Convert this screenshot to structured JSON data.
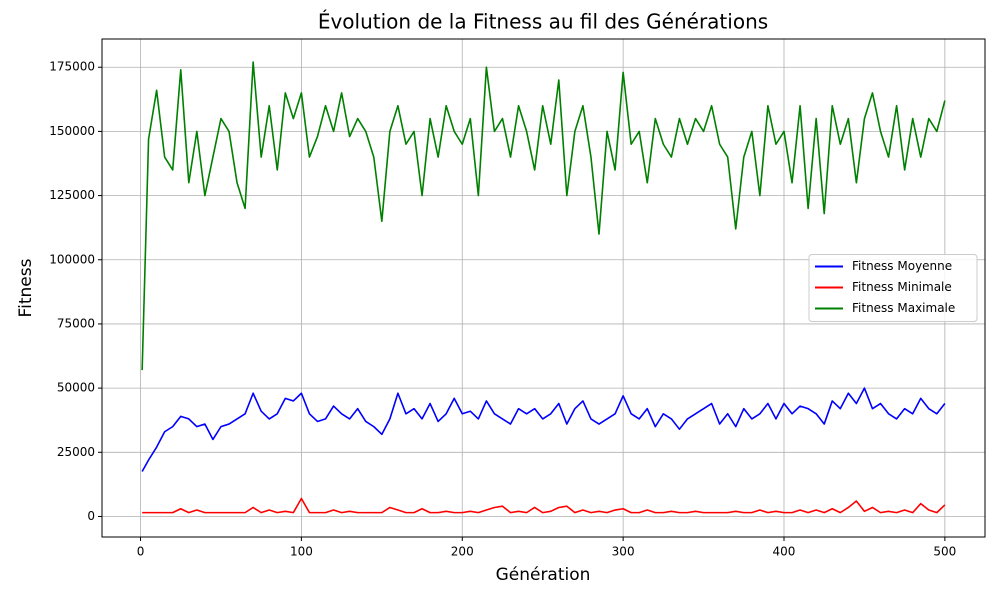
{
  "chart_data": {
    "type": "line",
    "title": "Évolution de la Fitness au fil des Générations",
    "x_label": "Génération",
    "y_label": "Fitness",
    "x": [
      1,
      5,
      10,
      15,
      20,
      25,
      30,
      35,
      40,
      45,
      50,
      55,
      60,
      65,
      70,
      75,
      80,
      85,
      90,
      95,
      100,
      105,
      110,
      115,
      120,
      125,
      130,
      135,
      140,
      145,
      150,
      155,
      160,
      165,
      170,
      175,
      180,
      185,
      190,
      195,
      200,
      205,
      210,
      215,
      220,
      225,
      230,
      235,
      240,
      245,
      250,
      255,
      260,
      265,
      270,
      275,
      280,
      285,
      290,
      295,
      300,
      305,
      310,
      315,
      320,
      325,
      330,
      335,
      340,
      345,
      350,
      355,
      360,
      365,
      370,
      375,
      380,
      385,
      390,
      395,
      400,
      405,
      410,
      415,
      420,
      425,
      430,
      435,
      440,
      445,
      450,
      455,
      460,
      465,
      470,
      475,
      480,
      485,
      490,
      495,
      500
    ],
    "series": [
      {
        "name": "Fitness Moyenne",
        "color": "#0000ff",
        "values": [
          17500,
          22000,
          27000,
          33000,
          35000,
          39000,
          38000,
          35000,
          36000,
          30000,
          35000,
          36000,
          38000,
          40000,
          48000,
          41000,
          38000,
          40000,
          46000,
          45000,
          48000,
          40000,
          37000,
          38000,
          43000,
          40000,
          38000,
          42000,
          37000,
          35000,
          32000,
          38000,
          48000,
          40000,
          42000,
          38000,
          44000,
          37000,
          40000,
          46000,
          40000,
          41000,
          38000,
          45000,
          40000,
          38000,
          36000,
          42000,
          40000,
          42000,
          38000,
          40000,
          44000,
          36000,
          42000,
          45000,
          38000,
          36000,
          38000,
          40000,
          47000,
          40000,
          38000,
          42000,
          35000,
          40000,
          38000,
          34000,
          38000,
          40000,
          42000,
          44000,
          36000,
          40000,
          35000,
          42000,
          38000,
          40000,
          44000,
          38000,
          44000,
          40000,
          43000,
          42000,
          40000,
          36000,
          45000,
          42000,
          48000,
          44000,
          50000,
          42000,
          44000,
          40000,
          38000,
          42000,
          40000,
          46000,
          42000,
          40000,
          44000
        ]
      },
      {
        "name": "Fitness Minimale",
        "color": "#ff0000",
        "values": [
          1500,
          1500,
          1500,
          1500,
          1500,
          3000,
          1500,
          2500,
          1500,
          1500,
          1500,
          1500,
          1500,
          1500,
          3500,
          1500,
          2500,
          1500,
          2000,
          1500,
          7000,
          1500,
          1500,
          1500,
          2500,
          1500,
          2000,
          1500,
          1500,
          1500,
          1500,
          3500,
          2500,
          1500,
          1500,
          3000,
          1500,
          1500,
          2000,
          1500,
          1500,
          2000,
          1500,
          2500,
          3500,
          4000,
          1500,
          2000,
          1500,
          3500,
          1500,
          2000,
          3500,
          4000,
          1500,
          2500,
          1500,
          2000,
          1500,
          2500,
          3000,
          1500,
          1500,
          2500,
          1500,
          1500,
          2000,
          1500,
          1500,
          2000,
          1500,
          1500,
          1500,
          1500,
          2000,
          1500,
          1500,
          2500,
          1500,
          2000,
          1500,
          1500,
          2500,
          1500,
          2500,
          1500,
          3000,
          1500,
          3500,
          6000,
          2000,
          3500,
          1500,
          2000,
          1500,
          2500,
          1500,
          5000,
          2500,
          1500,
          4500
        ]
      },
      {
        "name": "Fitness Maximale",
        "color": "#008000",
        "values": [
          57000,
          147000,
          166000,
          140000,
          135000,
          174000,
          130000,
          150000,
          125000,
          140000,
          155000,
          150000,
          130000,
          120000,
          177000,
          140000,
          160000,
          135000,
          165000,
          155000,
          165000,
          140000,
          148000,
          160000,
          150000,
          165000,
          148000,
          155000,
          150000,
          140000,
          115000,
          150000,
          160000,
          145000,
          150000,
          125000,
          155000,
          140000,
          160000,
          150000,
          145000,
          155000,
          125000,
          175000,
          150000,
          155000,
          140000,
          160000,
          150000,
          135000,
          160000,
          145000,
          170000,
          125000,
          150000,
          160000,
          140000,
          110000,
          150000,
          135000,
          173000,
          145000,
          150000,
          130000,
          155000,
          145000,
          140000,
          155000,
          145000,
          155000,
          150000,
          160000,
          145000,
          140000,
          112000,
          140000,
          150000,
          125000,
          160000,
          145000,
          150000,
          130000,
          160000,
          120000,
          155000,
          118000,
          160000,
          145000,
          155000,
          130000,
          155000,
          165000,
          150000,
          140000,
          160000,
          135000,
          155000,
          140000,
          155000,
          150000,
          162000
        ]
      }
    ],
    "xlim": [
      -23.95,
      524.95
    ],
    "ylim": [
      -8000,
      186000
    ],
    "xticks": [
      0,
      100,
      200,
      300,
      400,
      500
    ],
    "yticks": [
      0,
      25000,
      50000,
      75000,
      100000,
      125000,
      150000,
      175000
    ],
    "grid": true,
    "legend": "center right"
  }
}
